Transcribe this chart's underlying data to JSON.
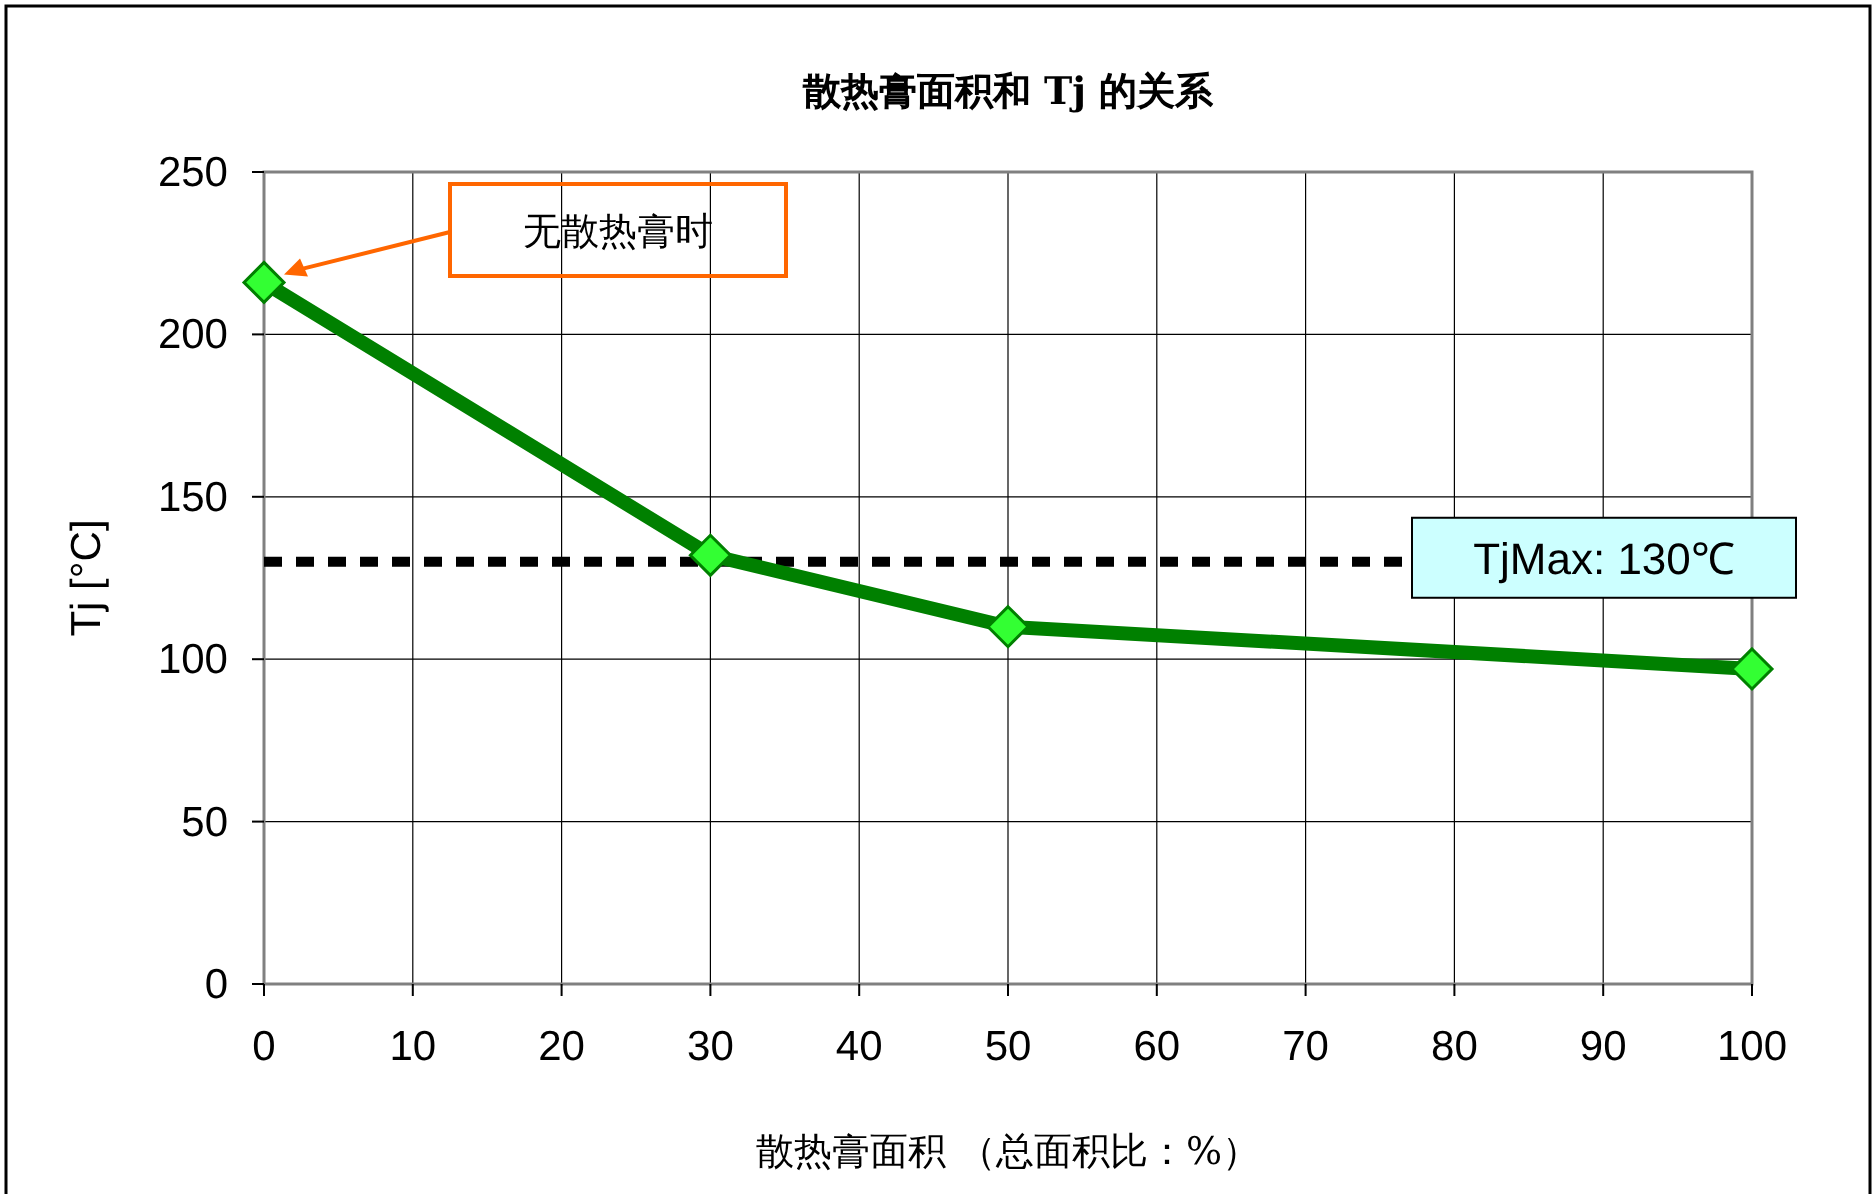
{
  "chart_data": {
    "type": "line",
    "title": "散热膏面积和 Tj 的关系",
    "xlabel": "散热膏面积 （总面积比：%）",
    "ylabel": "Tj [°C]",
    "x": [
      0,
      30,
      50,
      100
    ],
    "series": [
      {
        "color": "#008000",
        "values": [
          216,
          132,
          110,
          97
        ]
      }
    ],
    "xlim": [
      0,
      100
    ],
    "xticks": [
      0,
      10,
      20,
      30,
      40,
      50,
      60,
      70,
      80,
      90,
      100
    ],
    "ylim": [
      0,
      250
    ],
    "yticks": [
      0,
      50,
      100,
      150,
      200,
      250
    ],
    "grid": true,
    "marker": "diamond",
    "line_style": "solid",
    "ref_lines": [
      {
        "axis": "y",
        "value": 130,
        "label": "TjMax: 130℃",
        "color": "#000000",
        "line_style": "dashed"
      }
    ],
    "annotations": [
      "无散热膏时"
    ]
  }
}
